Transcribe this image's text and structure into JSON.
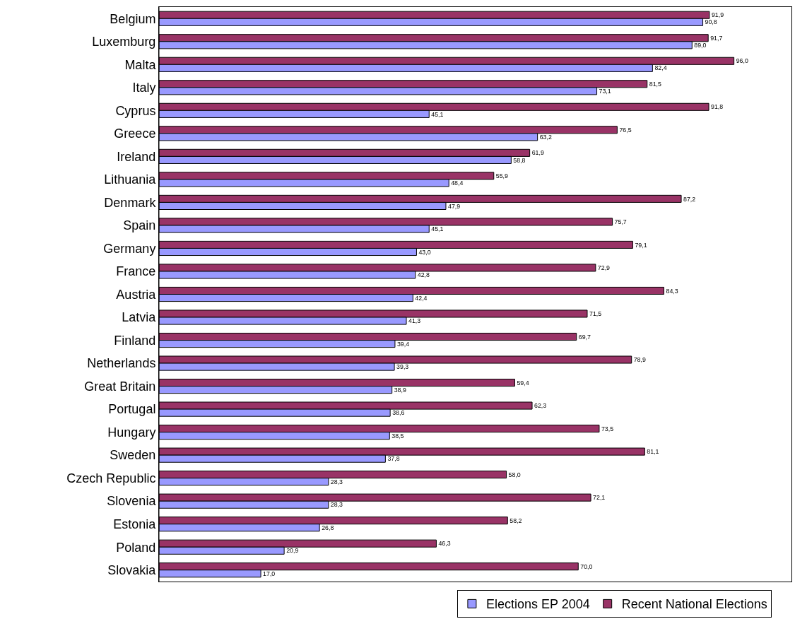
{
  "chart_data": {
    "type": "bar",
    "orientation": "horizontal",
    "legend": "bottom",
    "categories": [
      "Belgium",
      "Luxemburg",
      "Malta",
      "Italy",
      "Cyprus",
      "Greece",
      "Ireland",
      "Lithuania",
      "Denmark",
      "Spain",
      "Germany",
      "France",
      "Austria",
      "Latvia",
      "Finland",
      "Netherlands",
      "Great Britain",
      "Portugal",
      "Hungary",
      "Sweden",
      "Czech Republic",
      "Slovenia",
      "Estonia",
      "Poland",
      "Slovakia"
    ],
    "series": [
      {
        "name": "Elections EP 2004",
        "color": "#9999ff",
        "values": [
          90.8,
          89.0,
          82.4,
          73.1,
          45.1,
          63.2,
          58.8,
          48.4,
          47.9,
          45.1,
          43.0,
          42.8,
          42.4,
          41.3,
          39.4,
          39.3,
          38.9,
          38.6,
          38.5,
          37.8,
          28.3,
          28.3,
          26.8,
          20.9,
          17.0
        ],
        "value_labels": [
          "90,8",
          "89,0",
          "82,4",
          "73,1",
          "45,1",
          "63,2",
          "58,8",
          "48,4",
          "47,9",
          "45,1",
          "43,0",
          "42,8",
          "42,4",
          "41,3",
          "39,4",
          "39,3",
          "38,9",
          "38,6",
          "38,5",
          "37,8",
          "28,3",
          "28,3",
          "26,8",
          "20,9",
          "17,0"
        ]
      },
      {
        "name": "Recent National Elections",
        "color": "#993366",
        "values": [
          91.9,
          91.7,
          96.0,
          81.5,
          91.8,
          76.5,
          61.9,
          55.9,
          87.2,
          75.7,
          79.1,
          72.9,
          84.3,
          71.5,
          69.7,
          78.9,
          59.4,
          62.3,
          73.5,
          81.1,
          58.0,
          72.1,
          58.2,
          46.3,
          70.0
        ],
        "value_labels": [
          "91,9",
          "91,7",
          "96,0",
          "81,5",
          "91,8",
          "76,5",
          "61,9",
          "55,9",
          "87,2",
          "75,7",
          "79,1",
          "72,9",
          "84,3",
          "71,5",
          "69,7",
          "78,9",
          "59,4",
          "62,3",
          "73,5",
          "81,1",
          "58,0",
          "72,1",
          "58,2",
          "46,3",
          "70,0"
        ]
      }
    ]
  }
}
